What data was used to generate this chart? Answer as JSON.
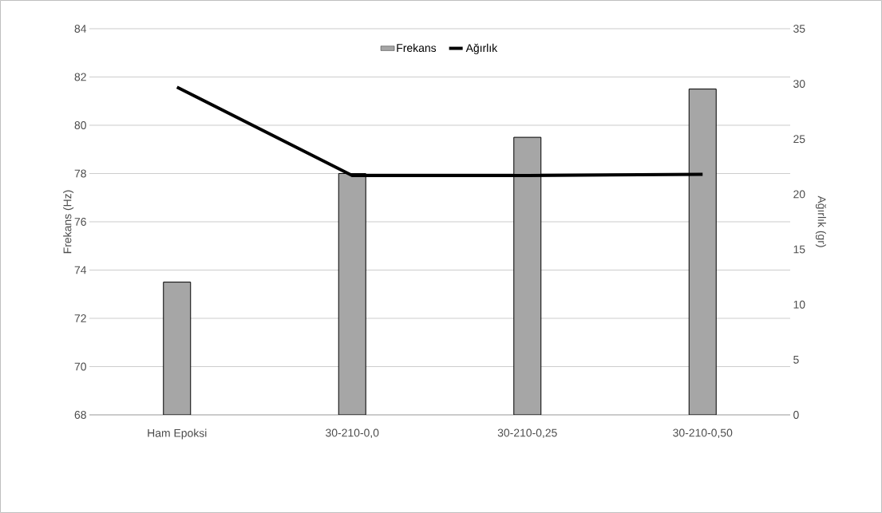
{
  "chart_data": {
    "type": "bar",
    "categories": [
      "Ham Epoksi",
      "30-210-0,0",
      "30-210-0,25",
      "30-210-0,50"
    ],
    "series": [
      {
        "name": "Frekans",
        "color": "#a6a6a6",
        "values": [
          73.5,
          78,
          79.5,
          81.5
        ]
      },
      {
        "name": "Ağırlık",
        "type": "line",
        "axis": "y2",
        "color": "#000000",
        "values": [
          29.7,
          21.7,
          21.7,
          21.8
        ]
      }
    ],
    "ylabel": "Frekans (Hz)",
    "y2label": "Ağırlık (gr)",
    "ylim": [
      68,
      84
    ],
    "yticks": [
      68,
      70,
      72,
      74,
      76,
      78,
      80,
      82,
      84
    ],
    "y2lim": [
      0,
      35
    ],
    "y2ticks": [
      0,
      5,
      10,
      15,
      20,
      25,
      30,
      35
    ],
    "grid": "y",
    "legend": "top",
    "marker": "none",
    "line_style": "solid"
  }
}
